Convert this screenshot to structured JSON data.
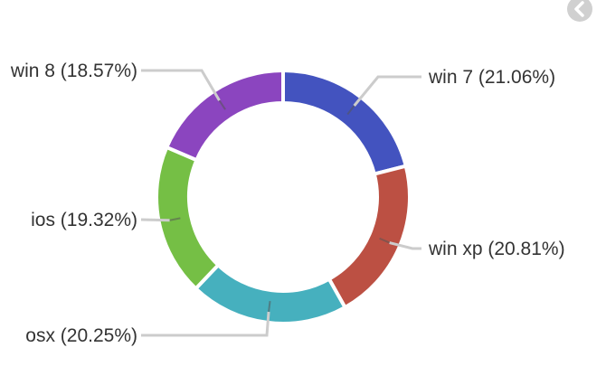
{
  "chart_data": {
    "type": "pie",
    "style": "donut",
    "series": [
      {
        "name": "win 7",
        "value": 21.06,
        "label": "win 7 (21.06%)",
        "color": "#4353bf"
      },
      {
        "name": "win xp",
        "value": 20.81,
        "label": "win xp (20.81%)",
        "color": "#bc5043"
      },
      {
        "name": "osx",
        "value": 20.25,
        "label": "osx (20.25%)",
        "color": "#46b0be"
      },
      {
        "name": "ios",
        "value": 19.32,
        "label": "ios (19.32%)",
        "color": "#75bf45"
      },
      {
        "name": "win 8",
        "value": 18.57,
        "label": "win 8 (18.57%)",
        "color": "#8b45bf"
      }
    ],
    "title": "",
    "legend": "none",
    "start": "top"
  },
  "nav": {
    "icon": "chevron-left-icon",
    "color": "#d0d0d0"
  }
}
